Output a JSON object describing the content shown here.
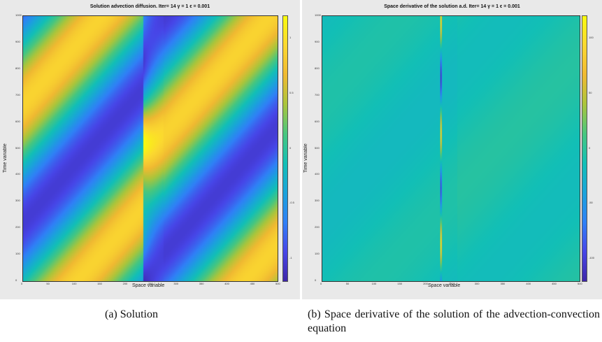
{
  "chart_data": [
    {
      "type": "heatmap",
      "title": "Solution advection diffusion. Iter= 14 γ = 1 ϵ = 0.001",
      "xlabel": "Space variable",
      "ylabel": "Time variable",
      "xlim": [
        0,
        500
      ],
      "ylim": [
        0,
        1000
      ],
      "x_ticks": [
        "0",
        "50",
        "100",
        "150",
        "200",
        "250",
        "300",
        "350",
        "400",
        "450",
        "500"
      ],
      "y_ticks": [
        "0",
        "100",
        "200",
        "300",
        "400",
        "500",
        "600",
        "700",
        "800",
        "900",
        "1000"
      ],
      "colorbar_ticks": [
        "-1",
        "-0.5",
        "0",
        "0.5",
        "1"
      ],
      "clim": [
        -1.2,
        1.2
      ]
    },
    {
      "type": "heatmap",
      "title": "Space derivative of the solution a.d. Iter= 14 γ = 1 ϵ = 0.001",
      "xlabel": "Space variable",
      "ylabel": "Time variable",
      "xlim": [
        0,
        500
      ],
      "ylim": [
        0,
        1000
      ],
      "x_ticks": [
        "0",
        "50",
        "100",
        "150",
        "200",
        "250",
        "300",
        "350",
        "400",
        "450",
        "500"
      ],
      "y_ticks": [
        "0",
        "100",
        "200",
        "300",
        "400",
        "500",
        "600",
        "700",
        "800",
        "900",
        "1000"
      ],
      "colorbar_ticks": [
        "-100",
        "-50",
        "0",
        "50",
        "100"
      ],
      "clim": [
        -120,
        120
      ]
    }
  ],
  "captions": {
    "a": "(a) Solution",
    "b": "(b) Space derivative of the solution of the advection-convection equation"
  }
}
